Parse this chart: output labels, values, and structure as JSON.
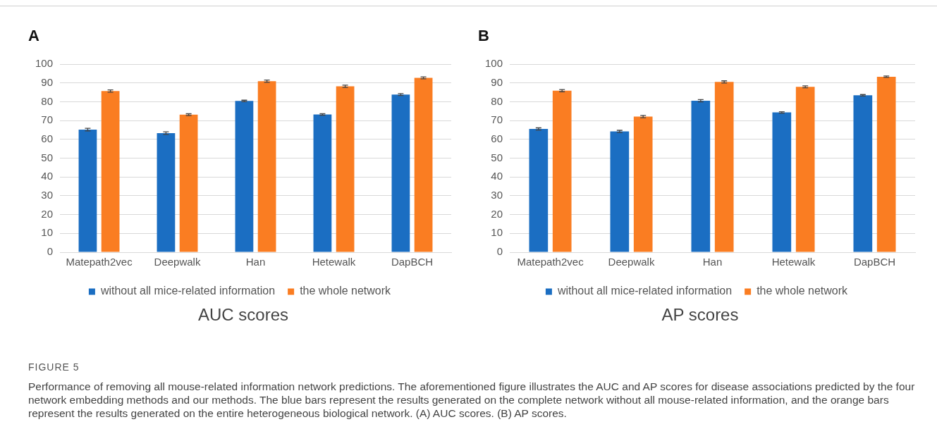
{
  "chart_data": [
    {
      "type": "bar",
      "title": "AUC scores",
      "categories": [
        "Matepath2vec",
        "Deepwalk",
        "Han",
        "Hetewalk",
        "DapBCH"
      ],
      "series": [
        {
          "name": "without all mice-related information",
          "color": "#1b6ec2",
          "values": [
            65.2,
            63.3,
            80.4,
            73.2,
            83.8
          ],
          "errors": [
            0.7,
            0.7,
            0.4,
            0.4,
            0.5
          ]
        },
        {
          "name": "the whole network",
          "color": "#fa7d22",
          "values": [
            85.7,
            73.1,
            90.9,
            88.2,
            92.7
          ],
          "errors": [
            0.6,
            0.5,
            0.6,
            0.6,
            0.5
          ]
        }
      ],
      "ylim": [
        0,
        100
      ],
      "yticks": [
        0,
        10,
        20,
        30,
        40,
        50,
        60,
        70,
        80,
        90,
        100
      ],
      "grid": "y",
      "legend": "bottom",
      "annotations": [
        "A"
      ]
    },
    {
      "type": "bar",
      "title": "AP scores",
      "categories": [
        "Matepath2vec",
        "Deepwalk",
        "Han",
        "Hetewalk",
        "DapBCH"
      ],
      "series": [
        {
          "name": "without all mice-related information",
          "color": "#1b6ec2",
          "values": [
            65.5,
            64.2,
            80.5,
            74.3,
            83.4
          ],
          "errors": [
            0.6,
            0.6,
            0.6,
            0.4,
            0.4
          ]
        },
        {
          "name": "the whole network",
          "color": "#fa7d22",
          "values": [
            85.9,
            72.1,
            90.5,
            87.9,
            93.3
          ],
          "errors": [
            0.6,
            0.6,
            0.6,
            0.5,
            0.4
          ]
        }
      ],
      "ylim": [
        0,
        100
      ],
      "yticks": [
        0,
        10,
        20,
        30,
        40,
        50,
        60,
        70,
        80,
        90,
        100
      ],
      "grid": "y",
      "legend": "bottom",
      "annotations": [
        "B",
        "FIGURE 5",
        "Performance of removing all mouse-related information network predictions. The aforementioned figure illustrates the AUC and AP scores for disease associations predicted by the four network embedding methods and our methods. The blue bars represent the results generated on the complete network without all mouse-related information, and the orange bars represent the results generated on the entire heterogeneous biological network. (A) AUC scores. (B) AP scores."
      ]
    }
  ]
}
